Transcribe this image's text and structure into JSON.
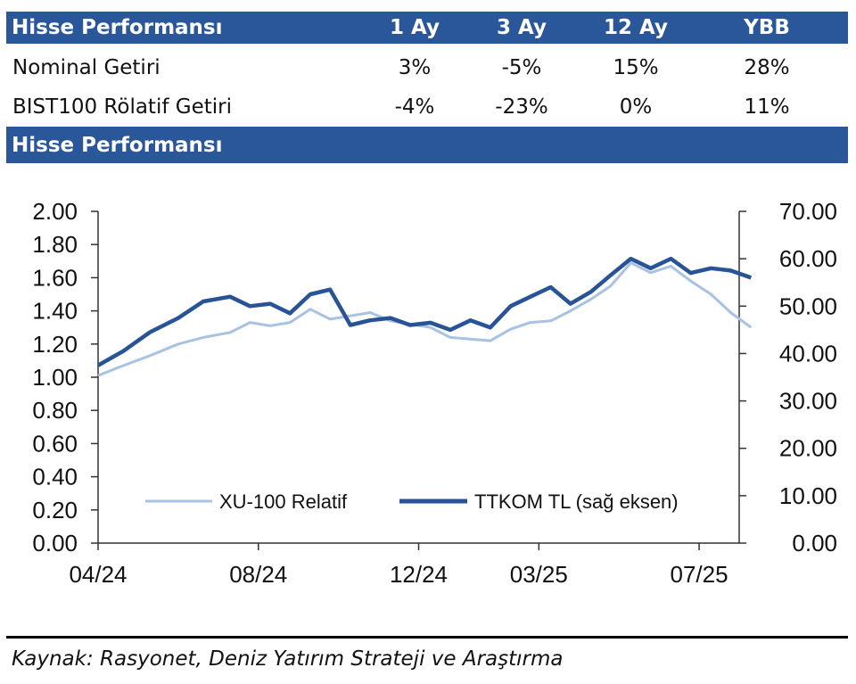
{
  "performance_table": {
    "title": "Hisse Performansı",
    "columns": [
      "1 Ay",
      "3 Ay",
      "12 Ay",
      "YBB"
    ],
    "rows": [
      {
        "label": "Nominal Getiri",
        "values": [
          "3%",
          "-5%",
          "15%",
          "28%"
        ]
      },
      {
        "label": "BIST100 Rölatif Getiri",
        "values": [
          "-4%",
          "-23%",
          "0%",
          "11%"
        ]
      }
    ]
  },
  "chart_title": "Hisse Performansı",
  "source": "Kaynak: Rasyonet, Deniz Yatırım Strateji ve Araştırma",
  "colors": {
    "header_bg": "#2a579a",
    "series_relatif": "#a8c2e2",
    "series_ttkom": "#285497"
  },
  "chart_data": {
    "type": "line",
    "x_tick_labels": [
      "04/24",
      "08/24",
      "12/24",
      "03/25",
      "07/25"
    ],
    "x_ticks": [
      "2024-04",
      "2024-08",
      "2024-12",
      "2025-03",
      "2025-07"
    ],
    "x_range": [
      "2024-04",
      "2025-08"
    ],
    "left_axis": {
      "ylim": [
        0,
        2
      ],
      "tick_labels": [
        "0.00",
        "0.20",
        "0.40",
        "0.60",
        "0.80",
        "1.00",
        "1.20",
        "1.40",
        "1.60",
        "1.80",
        "2.00"
      ]
    },
    "right_axis": {
      "ylim": [
        0,
        70
      ],
      "tick_labels": [
        "0.00",
        "10.00",
        "20.00",
        "30.00",
        "40.00",
        "50.00",
        "60.00",
        "70.00"
      ]
    },
    "legend_position": "bottom-center",
    "grid": false,
    "series": [
      {
        "name": "XU-100 Relatif",
        "axis": "left",
        "x": [
          "2024-04-01",
          "2024-04-20",
          "2024-05-10",
          "2024-06-01",
          "2024-06-20",
          "2024-07-10",
          "2024-07-25",
          "2024-08-10",
          "2024-08-25",
          "2024-09-10",
          "2024-09-25",
          "2024-10-10",
          "2024-10-25",
          "2024-11-10",
          "2024-11-25",
          "2024-12-10",
          "2024-12-25",
          "2025-01-10",
          "2025-01-25",
          "2025-02-10",
          "2025-02-25",
          "2025-03-10",
          "2025-03-25",
          "2025-04-10",
          "2025-04-25",
          "2025-05-10",
          "2025-05-25",
          "2025-06-10",
          "2025-06-25",
          "2025-07-10",
          "2025-07-25",
          "2025-08-10"
        ],
        "y": [
          1.01,
          1.07,
          1.13,
          1.2,
          1.24,
          1.27,
          1.33,
          1.31,
          1.33,
          1.41,
          1.35,
          1.37,
          1.39,
          1.34,
          1.32,
          1.3,
          1.24,
          1.23,
          1.22,
          1.29,
          1.33,
          1.34,
          1.4,
          1.47,
          1.55,
          1.69,
          1.63,
          1.67,
          1.58,
          1.5,
          1.39,
          1.3
        ]
      },
      {
        "name": "TTKOM TL (sağ eksen)",
        "axis": "right",
        "x": [
          "2024-04-01",
          "2024-04-20",
          "2024-05-10",
          "2024-06-01",
          "2024-06-20",
          "2024-07-10",
          "2024-07-25",
          "2024-08-10",
          "2024-08-25",
          "2024-09-10",
          "2024-09-25",
          "2024-10-10",
          "2024-10-25",
          "2024-11-10",
          "2024-11-25",
          "2024-12-10",
          "2024-12-25",
          "2025-01-10",
          "2025-01-25",
          "2025-02-10",
          "2025-02-25",
          "2025-03-10",
          "2025-03-25",
          "2025-04-10",
          "2025-04-25",
          "2025-05-10",
          "2025-05-25",
          "2025-06-10",
          "2025-06-25",
          "2025-07-10",
          "2025-07-25",
          "2025-08-10"
        ],
        "y": [
          37.5,
          40.5,
          44.5,
          47.5,
          51.0,
          52.0,
          50.0,
          50.5,
          48.5,
          52.5,
          53.5,
          46.0,
          47.0,
          47.5,
          46.0,
          46.5,
          45.0,
          47.0,
          45.5,
          50.0,
          52.0,
          54.0,
          50.5,
          53.0,
          56.5,
          60.0,
          58.0,
          60.0,
          57.0,
          58.0,
          57.5,
          56.0
        ]
      }
    ]
  }
}
